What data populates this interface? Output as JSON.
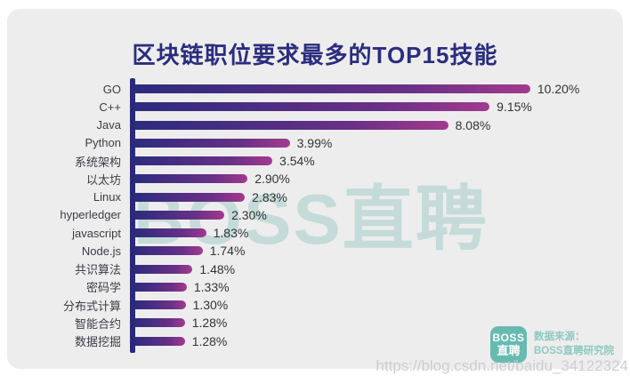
{
  "page": {
    "title": "区块链职位要求最多的TOP15技能",
    "watermark": "BOSS直聘",
    "url_watermark": "https://blog.csdn.net/baidu_34122324"
  },
  "source": {
    "logo_line1": "BOSS",
    "logo_line2": "直聘",
    "label": "数据来源：",
    "name": "BOSS直聘研究院"
  },
  "colors": {
    "card_bg": "#ededee",
    "title": "#2b2d7e",
    "axis": "#2b2a78",
    "bar_gradient_start": "#2d2b7d",
    "bar_gradient_end": "#a23a8e",
    "value_text": "#333333",
    "label_text": "#3c3c46",
    "logo_teal": "#67bab0",
    "source_teal": "#8fc9c1",
    "watermark_teal": "rgba(140,196,189,0.42)"
  },
  "chart_data": {
    "type": "bar",
    "orientation": "horizontal",
    "title": "区块链职位要求最多的TOP15技能",
    "categories": [
      "GO",
      "C++",
      "Java",
      "Python",
      "系统架构",
      "以太坊",
      "Linux",
      "hyperledger",
      "javascript",
      "Node.js",
      "共识算法",
      "密码学",
      "分布式计算",
      "智能合约",
      "数据挖掘"
    ],
    "values": [
      10.2,
      9.15,
      8.08,
      3.99,
      3.54,
      2.9,
      2.83,
      2.3,
      1.83,
      1.74,
      1.48,
      1.33,
      1.3,
      1.28,
      1.28
    ],
    "value_labels": [
      "10.20%",
      "9.15%",
      "8.08%",
      "3.99%",
      "3.54%",
      "2.90%",
      "2.83%",
      "2.30%",
      "1.83%",
      "1.74%",
      "1.48%",
      "1.33%",
      "1.30%",
      "1.28%",
      "1.28%"
    ],
    "unit": "%",
    "xlim": [
      0,
      10.5
    ],
    "grid": false,
    "legend": false,
    "bar_label_position": "right-of-bar",
    "max_bar_width_pct": 81
  }
}
